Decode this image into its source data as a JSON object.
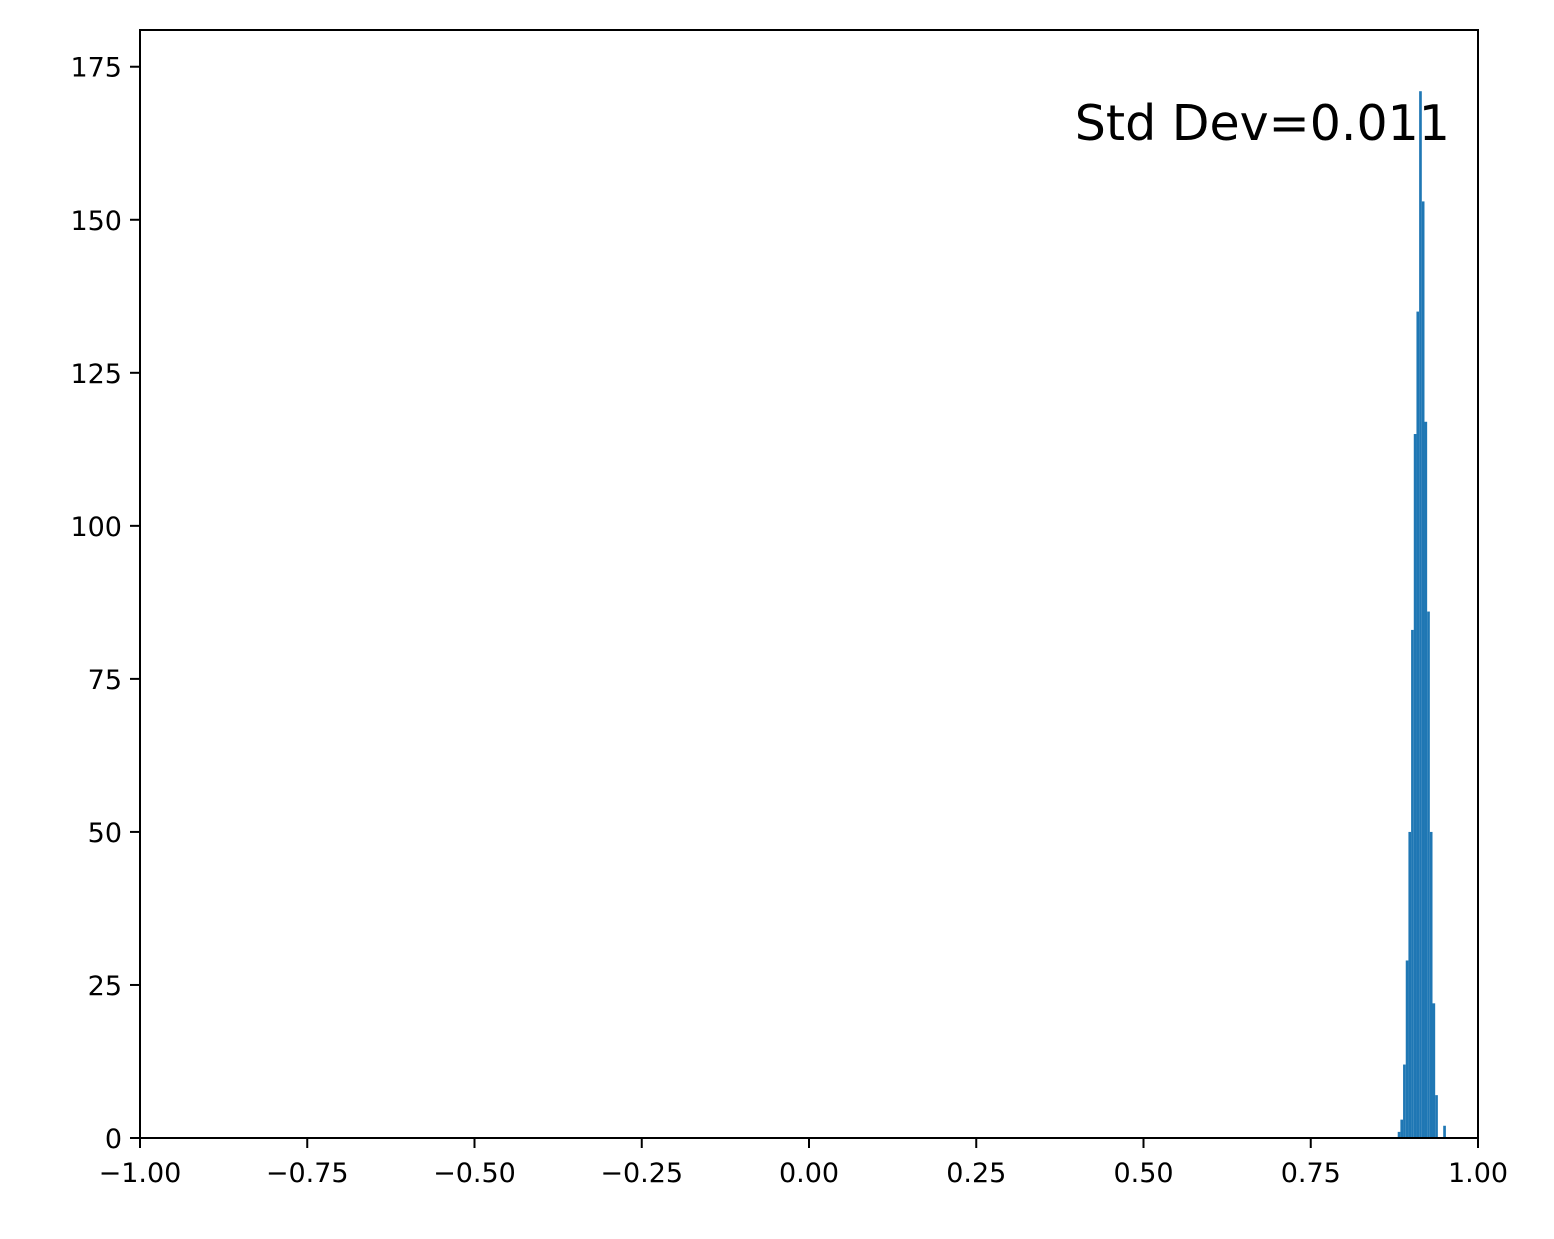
{
  "chart_data": {
    "type": "bar",
    "subtype": "histogram",
    "title": "",
    "xlabel": "",
    "ylabel": "",
    "xlim": [
      -1.0,
      1.0
    ],
    "ylim": [
      0,
      181
    ],
    "xticks": [
      -1.0,
      -0.75,
      -0.5,
      -0.25,
      0.0,
      0.25,
      0.5,
      0.75,
      1.0
    ],
    "xtick_labels": [
      "−1.00",
      "−0.75",
      "−0.50",
      "−0.25",
      "0.00",
      "0.25",
      "0.50",
      "0.75",
      "1.00"
    ],
    "yticks": [
      0,
      25,
      50,
      75,
      100,
      125,
      150,
      175
    ],
    "ytick_labels": [
      "0",
      "25",
      "50",
      "75",
      "100",
      "125",
      "150",
      "175"
    ],
    "bin_width": 0.004,
    "bins": [
      {
        "x0": 0.88,
        "x1": 0.884,
        "count": 1
      },
      {
        "x0": 0.884,
        "x1": 0.888,
        "count": 3
      },
      {
        "x0": 0.888,
        "x1": 0.892,
        "count": 12
      },
      {
        "x0": 0.892,
        "x1": 0.896,
        "count": 29
      },
      {
        "x0": 0.896,
        "x1": 0.9,
        "count": 50
      },
      {
        "x0": 0.9,
        "x1": 0.904,
        "count": 83
      },
      {
        "x0": 0.904,
        "x1": 0.908,
        "count": 115
      },
      {
        "x0": 0.908,
        "x1": 0.912,
        "count": 135
      },
      {
        "x0": 0.912,
        "x1": 0.916,
        "count": 171
      },
      {
        "x0": 0.916,
        "x1": 0.92,
        "count": 153
      },
      {
        "x0": 0.92,
        "x1": 0.924,
        "count": 117
      },
      {
        "x0": 0.924,
        "x1": 0.928,
        "count": 86
      },
      {
        "x0": 0.928,
        "x1": 0.932,
        "count": 50
      },
      {
        "x0": 0.932,
        "x1": 0.936,
        "count": 22
      },
      {
        "x0": 0.936,
        "x1": 0.94,
        "count": 7
      },
      {
        "x0": 0.94,
        "x1": 0.944,
        "count": 0
      },
      {
        "x0": 0.944,
        "x1": 0.948,
        "count": 0
      },
      {
        "x0": 0.948,
        "x1": 0.952,
        "count": 2
      }
    ],
    "annotation": "Std Dev=0.011",
    "bar_color": "#1f77b4",
    "grid": false,
    "legend": "none"
  }
}
